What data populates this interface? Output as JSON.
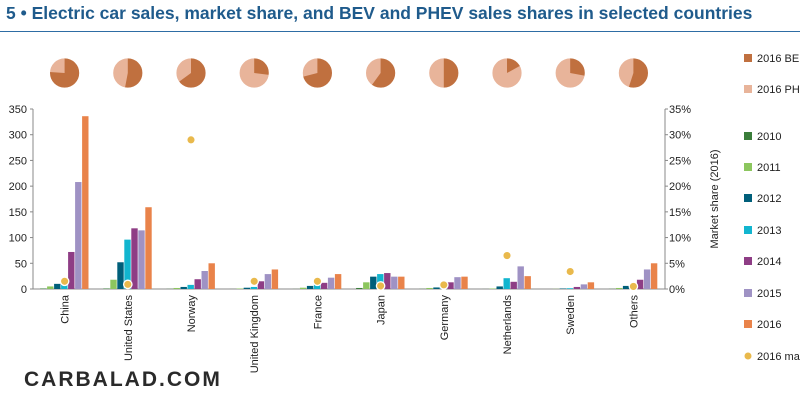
{
  "title": "5 • Electric car sales, market share, and BEV and PHEV sales shares in selected countries",
  "watermark": "CARBALAD.COM",
  "colors": {
    "bev": "#c0703f",
    "phev": "#e8b49a",
    "2010": "#3a7d3a",
    "2011": "#8cc65e",
    "2012": "#005f7a",
    "2013": "#12b5cf",
    "2014": "#8e3d85",
    "2015": "#9f92c4",
    "2016": "#e9834a",
    "share": "#e9b94c"
  },
  "chart_data": {
    "type": "bar",
    "categories": [
      "China",
      "United States",
      "Norway",
      "United Kingdom",
      "France",
      "Japan",
      "Germany",
      "Netherlands",
      "Sweden",
      "Others"
    ],
    "series": [
      {
        "name": "2010",
        "values": [
          1,
          1,
          0.3,
          0.1,
          0.2,
          2,
          0.3,
          0.1,
          0,
          0.3
        ]
      },
      {
        "name": "2011",
        "values": [
          5,
          18,
          2,
          1,
          2.5,
          13,
          2,
          1,
          0.3,
          2
        ]
      },
      {
        "name": "2012",
        "values": [
          10,
          52,
          4,
          2.5,
          6,
          24,
          3,
          5,
          1,
          6
        ]
      },
      {
        "name": "2013",
        "values": [
          15,
          96,
          8,
          4,
          9,
          29,
          7,
          21,
          1.5,
          7
        ]
      },
      {
        "name": "2014",
        "values": [
          72,
          118,
          19,
          15,
          12,
          31,
          13,
          14,
          4,
          18
        ]
      },
      {
        "name": "2015",
        "values": [
          208,
          114,
          35,
          29,
          22,
          24,
          23,
          44,
          9,
          38
        ]
      },
      {
        "name": "2016",
        "values": [
          336,
          159,
          50,
          38,
          29,
          24,
          24,
          25,
          13,
          50
        ]
      }
    ],
    "market_share_2016": [
      1.5,
      0.9,
      29,
      1.5,
      1.5,
      0.6,
      0.8,
      6.5,
      3.4,
      0.5
    ],
    "bev_share_2016": [
      0.76,
      0.53,
      0.65,
      0.27,
      0.71,
      0.6,
      0.5,
      0.17,
      0.28,
      0.55
    ],
    "left_axis": {
      "ylim": [
        0,
        350
      ],
      "ticks": [
        "0",
        "50",
        "100",
        "150",
        "200",
        "250",
        "300",
        "350"
      ]
    },
    "right_axis": {
      "ylim": [
        0,
        35
      ],
      "ylabel": "Market share (2016)",
      "ticks": [
        "0%",
        "5%",
        "10%",
        "15%",
        "20%",
        "25%",
        "30%",
        "35%"
      ]
    },
    "legend": {
      "placement": "right",
      "items": [
        "2016 BE",
        "2016 PH",
        "2010",
        "2011",
        "2012",
        "2013",
        "2014",
        "2015",
        "2016",
        "2016 ma"
      ]
    },
    "grid": false
  }
}
